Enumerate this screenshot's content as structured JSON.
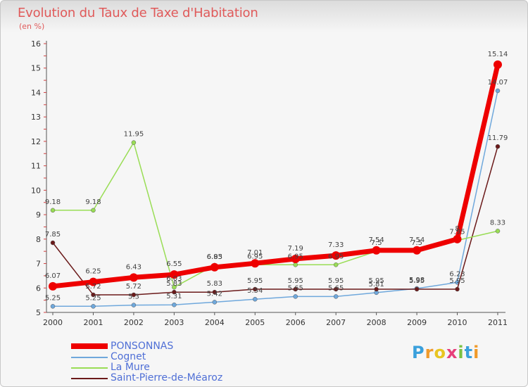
{
  "chart_data": {
    "type": "line",
    "title": "Evolution du Taux de Taxe d'Habitation",
    "unit_label": "(en %)",
    "x": [
      "2000",
      "2001",
      "2002",
      "2003",
      "2004",
      "2005",
      "2006",
      "2007",
      "2008",
      "2009",
      "2010",
      "2011"
    ],
    "ylim": [
      5,
      16
    ],
    "yticks": [
      "5",
      "6",
      "7",
      "8",
      "9",
      "10",
      "11",
      "12",
      "13",
      "14",
      "15",
      "16"
    ],
    "grid": false,
    "legend_position": "bottom-left",
    "series": [
      {
        "name": "PONSONNAS",
        "color": "#ee0000",
        "values": [
          6.07,
          6.25,
          6.43,
          6.55,
          6.85,
          7.01,
          7.19,
          7.33,
          7.54,
          7.54,
          8.0,
          15.14
        ],
        "labels": [
          "6.07",
          "6.25",
          "6.43",
          "6.55",
          "6.85",
          "7.01",
          "7.19",
          "7.33",
          "7.54",
          "7.54",
          "8",
          "15.14"
        ]
      },
      {
        "name": "Cognet",
        "color": "#6fa8dc",
        "values": [
          5.25,
          5.25,
          5.3,
          5.31,
          5.42,
          5.54,
          5.65,
          5.65,
          5.81,
          5.98,
          6.23,
          14.07
        ],
        "labels": [
          "5.25",
          "5.25",
          "5.3",
          "5.31",
          "5.42",
          "5.54",
          "5.65",
          "5.65",
          "5.81",
          "5.98",
          "6.23",
          "14.07"
        ]
      },
      {
        "name": "La Mure",
        "color": "#99dd55",
        "values": [
          9.18,
          9.18,
          11.95,
          6.03,
          6.93,
          6.95,
          6.95,
          6.95,
          7.5,
          7.5,
          7.95,
          8.33
        ],
        "labels": [
          "9.18",
          "9.18",
          "11.95",
          "6.03",
          "6.93",
          "6.95",
          "6.95",
          "6.95",
          "7.5",
          "7.5",
          "7.95",
          "8.33"
        ]
      },
      {
        "name": "Saint-Pierre-de-Méaroz",
        "color": "#6b1a1a",
        "values": [
          7.85,
          5.72,
          5.72,
          5.83,
          5.83,
          5.95,
          5.95,
          5.95,
          5.95,
          5.95,
          5.95,
          11.79
        ],
        "labels": [
          "7.85",
          "5.72",
          "5.72",
          "5.83",
          "5.83",
          "5.95",
          "5.95",
          "5.95",
          "5.95",
          "5.95",
          "5.95",
          "11.79"
        ]
      }
    ]
  },
  "logo": {
    "letters": [
      "P",
      "r",
      "o",
      "x",
      "i",
      "t",
      "i"
    ],
    "colors": [
      "#3aa0dc",
      "#f09a2a",
      "#e8c521",
      "#e63f7a",
      "#7ac143",
      "#3aa0dc",
      "#f09a2a"
    ]
  }
}
